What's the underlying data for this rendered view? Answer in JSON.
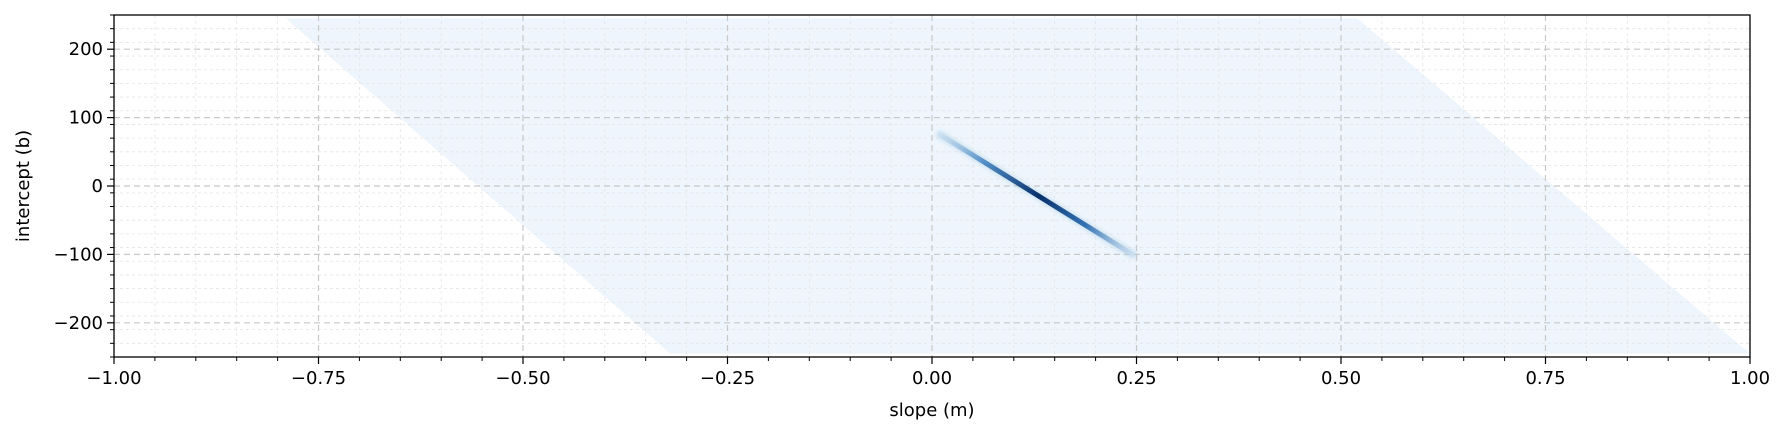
{
  "chart_data": {
    "type": "heatmap",
    "title": "",
    "xlabel": "slope (m)",
    "ylabel": "intercept (b)",
    "xlim": [
      -1.0,
      1.0
    ],
    "ylim": [
      -250,
      250
    ],
    "x_ticks": [
      -1.0,
      -0.75,
      -0.5,
      -0.25,
      0.0,
      0.25,
      0.5,
      0.75,
      1.0
    ],
    "x_tick_labels": [
      "−1.00",
      "−0.75",
      "−0.50",
      "−0.25",
      "0.00",
      "0.25",
      "0.50",
      "0.75",
      "1.00"
    ],
    "y_ticks": [
      200,
      100,
      0,
      -100,
      -200
    ],
    "y_tick_labels": [
      "200",
      "100",
      "0",
      "−100",
      "−200"
    ],
    "x_minor_step": 0.05,
    "y_minor_step": 20,
    "grid": true,
    "colormap": "Blues",
    "faint_band": {
      "description": "low-density region of parameter space",
      "corners": [
        [
          -0.79,
          245
        ],
        [
          0.52,
          245
        ],
        [
          1.0,
          -245
        ],
        [
          -0.32,
          -245
        ]
      ],
      "color": "#eef5fc"
    },
    "high_density_ridge": {
      "start": [
        0.01,
        75
      ],
      "end": [
        0.245,
        -100
      ],
      "peak": [
        0.13,
        -15
      ],
      "color_peak": "#08306b",
      "color_edge": "#c6dbef"
    }
  }
}
